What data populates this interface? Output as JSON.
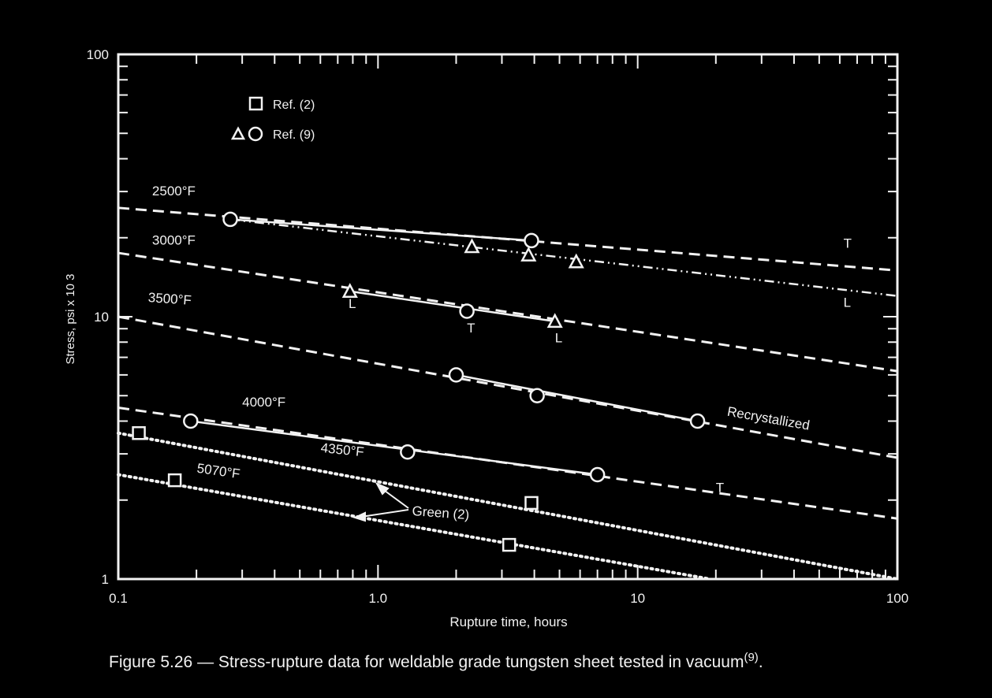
{
  "chart_data": {
    "type": "line",
    "xscale": "log",
    "yscale": "log",
    "xlim": [
      0.1,
      100
    ],
    "ylim": [
      1,
      100
    ],
    "xlabel": "Rupture time, hours",
    "ylabel": "Stress, psi x 10  3",
    "x_ticks": [
      "0.1",
      "1.0",
      "10",
      "100"
    ],
    "y_ticks": [
      "1",
      "10",
      "100"
    ],
    "legend": {
      "placement": "top-left",
      "entries": [
        {
          "marker": "square",
          "label": "Ref. (2)"
        },
        {
          "marker": "triangle-circle",
          "label": "Ref. (9)"
        }
      ]
    },
    "series": [
      {
        "name": "2500°F",
        "style": "dashed",
        "points": [
          [
            0.1,
            26
          ],
          [
            100,
            15
          ]
        ]
      },
      {
        "name": "2500°F",
        "style": "solid",
        "points": [
          [
            0.27,
            23.5
          ],
          [
            3.9,
            19.5
          ]
        ]
      },
      {
        "name": "2500°F",
        "style": "dashdot",
        "points": [
          [
            0.27,
            23.5
          ],
          [
            100,
            12
          ]
        ]
      },
      {
        "name": "3000°F",
        "style": "dashed",
        "points": [
          [
            0.1,
            17.5
          ],
          [
            100,
            6.2
          ]
        ]
      },
      {
        "name": "3000°F",
        "style": "solid",
        "points": [
          [
            0.78,
            12.5
          ],
          [
            4.8,
            9.6
          ]
        ]
      },
      {
        "name": "3500°F",
        "style": "dashed",
        "points": [
          [
            0.1,
            10
          ],
          [
            100,
            2.9
          ]
        ]
      },
      {
        "name": "3500°F",
        "style": "solid",
        "points": [
          [
            2.0,
            6.0
          ],
          [
            17,
            4.0
          ]
        ]
      },
      {
        "name": "4000°F",
        "style": "dashed",
        "points": [
          [
            0.1,
            4.5
          ],
          [
            100,
            1.7
          ]
        ]
      },
      {
        "name": "4000°F",
        "style": "solid",
        "points": [
          [
            0.19,
            4.0
          ],
          [
            7.0,
            2.5
          ]
        ]
      },
      {
        "name": "4350°F",
        "style": "dotted",
        "points": [
          [
            0.1,
            3.6
          ],
          [
            100,
            1.0
          ]
        ]
      },
      {
        "name": "5070°F",
        "style": "dotted",
        "points": [
          [
            0.1,
            2.5
          ],
          [
            19,
            1.0
          ]
        ]
      }
    ],
    "points": [
      {
        "marker": "circle",
        "x": 0.27,
        "y": 23.5
      },
      {
        "marker": "circle",
        "x": 3.9,
        "y": 19.5
      },
      {
        "marker": "triangle",
        "x": 2.3,
        "y": 18.5
      },
      {
        "marker": "triangle",
        "x": 3.8,
        "y": 17.2
      },
      {
        "marker": "triangle",
        "x": 5.8,
        "y": 16.2
      },
      {
        "marker": "triangle",
        "x": 0.78,
        "y": 12.5
      },
      {
        "marker": "circle",
        "x": 2.2,
        "y": 10.5
      },
      {
        "marker": "triangle",
        "x": 4.8,
        "y": 9.6
      },
      {
        "marker": "circle",
        "x": 2.0,
        "y": 6.0
      },
      {
        "marker": "circle",
        "x": 4.1,
        "y": 5.0
      },
      {
        "marker": "circle",
        "x": 17,
        "y": 4.0
      },
      {
        "marker": "circle",
        "x": 0.19,
        "y": 4.0
      },
      {
        "marker": "circle",
        "x": 1.3,
        "y": 3.05
      },
      {
        "marker": "circle",
        "x": 7.0,
        "y": 2.5
      },
      {
        "marker": "square",
        "x": 0.12,
        "y": 3.6
      },
      {
        "marker": "square",
        "x": 0.165,
        "y": 2.38
      },
      {
        "marker": "square",
        "x": 3.9,
        "y": 1.95
      },
      {
        "marker": "square",
        "x": 3.2,
        "y": 1.35
      }
    ],
    "annotations": [
      {
        "text": "2500°F",
        "x": 0.135,
        "y": 29,
        "rotate": 0
      },
      {
        "text": "3000°F",
        "x": 0.135,
        "y": 18.8,
        "rotate": 0
      },
      {
        "text": "3500°F",
        "x": 0.13,
        "y": 11.4,
        "rotate": 4
      },
      {
        "text": "4000°F",
        "x": 0.3,
        "y": 4.55,
        "rotate": 0
      },
      {
        "text": "4350°F",
        "x": 0.6,
        "y": 3.05,
        "rotate": 6
      },
      {
        "text": "5070°F",
        "x": 0.2,
        "y": 2.55,
        "rotate": 8
      },
      {
        "text": "Recrystallized",
        "x": 22,
        "y": 4.2,
        "rotate": 10
      },
      {
        "text": "Green (2)",
        "x": 1.35,
        "y": 1.75,
        "rotate": 4
      },
      {
        "text": "T",
        "x": 62,
        "y": 18.3,
        "rotate": 0
      },
      {
        "text": "L",
        "x": 62,
        "y": 10.9,
        "rotate": 0
      },
      {
        "text": "L",
        "x": 0.77,
        "y": 10.8,
        "rotate": 0
      },
      {
        "text": "T",
        "x": 2.2,
        "y": 8.7,
        "rotate": 0
      },
      {
        "text": "L",
        "x": 4.8,
        "y": 8.0,
        "rotate": 0
      },
      {
        "text": "T",
        "x": 20,
        "y": 2.15,
        "rotate": 0
      }
    ]
  },
  "caption": {
    "text": "Figure 5.26 — Stress-rupture data for weldable grade tungsten sheet tested in vacuum",
    "superscript": "(9)",
    "suffix": "."
  }
}
